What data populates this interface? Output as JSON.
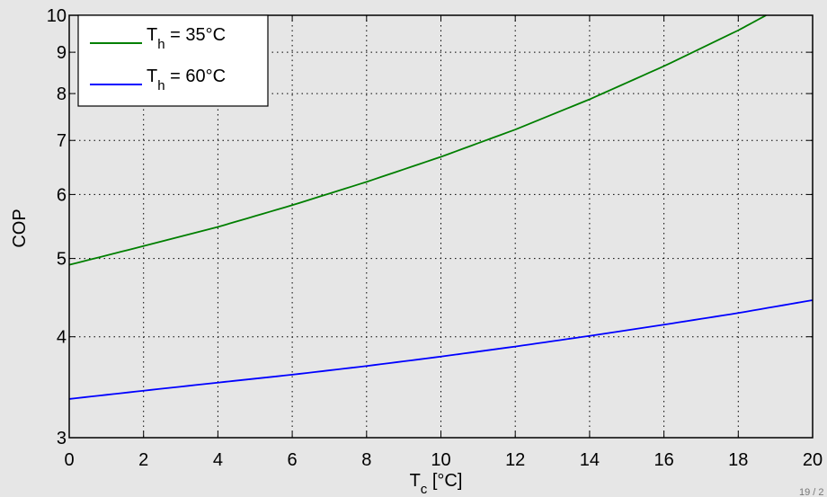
{
  "chart_data": {
    "type": "line",
    "xlabel": "T",
    "xlabel_subscript": "c",
    "xlabel_unit": " [°C]",
    "ylabel": "COP",
    "xlim": [
      0,
      20
    ],
    "ylim": [
      3,
      10
    ],
    "yscale": "log",
    "grid": true,
    "legend_position": "top-left",
    "x_ticks": [
      0,
      2,
      4,
      6,
      8,
      10,
      12,
      14,
      16,
      18,
      20
    ],
    "y_ticks": [
      3,
      4,
      5,
      6,
      7,
      8,
      9,
      10
    ],
    "series": [
      {
        "name": "T",
        "name_subscript": "h",
        "name_suffix": " = 35°C",
        "color": "#007f00",
        "x": [
          0,
          2,
          4,
          6,
          8,
          10,
          12,
          14,
          16,
          18,
          18.75
        ],
        "y": [
          4.91,
          5.18,
          5.47,
          5.82,
          6.22,
          6.68,
          7.22,
          7.87,
          8.65,
          9.58,
          10.0
        ]
      },
      {
        "name": "T",
        "name_subscript": "h",
        "name_suffix": " = 60°C",
        "color": "#0000ff",
        "x": [
          0,
          2,
          4,
          6,
          8,
          10,
          12,
          14,
          16,
          18,
          20
        ],
        "y": [
          3.35,
          3.43,
          3.51,
          3.59,
          3.68,
          3.78,
          3.89,
          4.01,
          4.14,
          4.28,
          4.44
        ]
      }
    ]
  },
  "page_number": "19 / 2"
}
